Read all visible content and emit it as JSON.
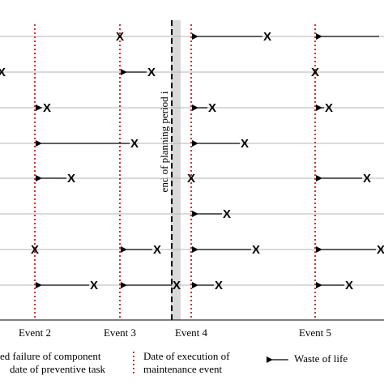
{
  "diagram": {
    "events": [
      "Event 2",
      "Event 3",
      "Event 4",
      "Event 5"
    ],
    "boundary_label": "end of planning period i",
    "legend": {
      "failure": [
        "ed failure of component",
        "date of preventive task"
      ],
      "execution": [
        "Date of execution of",
        "maintenance event"
      ],
      "waste": "Waste of life"
    }
  }
}
